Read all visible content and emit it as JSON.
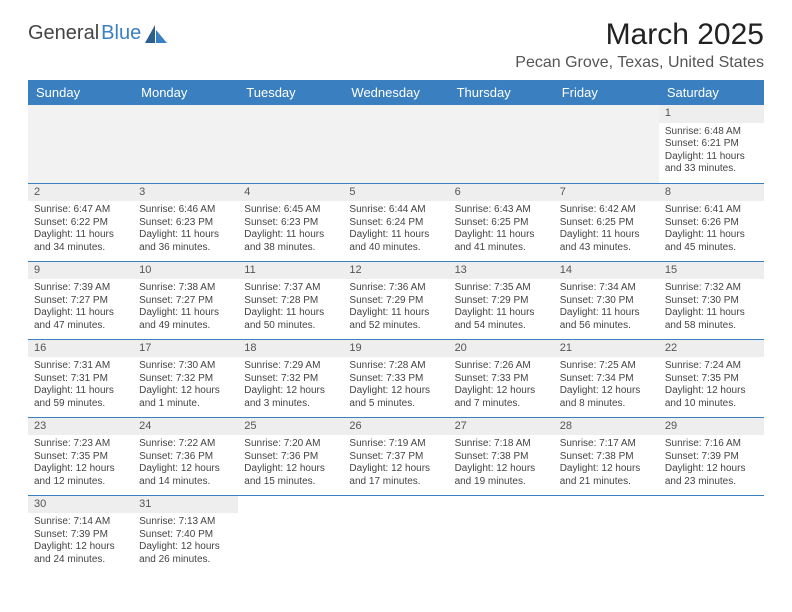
{
  "logo": {
    "text1": "General",
    "text2": "Blue"
  },
  "title": "March 2025",
  "location": "Pecan Grove, Texas, United States",
  "header_bg": "#3a7fbf",
  "dayHeaders": [
    "Sunday",
    "Monday",
    "Tuesday",
    "Wednesday",
    "Thursday",
    "Friday",
    "Saturday"
  ],
  "weeks": [
    [
      null,
      null,
      null,
      null,
      null,
      null,
      {
        "n": "1",
        "sr": "Sunrise: 6:48 AM",
        "ss": "Sunset: 6:21 PM",
        "d1": "Daylight: 11 hours",
        "d2": "and 33 minutes."
      }
    ],
    [
      {
        "n": "2",
        "sr": "Sunrise: 6:47 AM",
        "ss": "Sunset: 6:22 PM",
        "d1": "Daylight: 11 hours",
        "d2": "and 34 minutes."
      },
      {
        "n": "3",
        "sr": "Sunrise: 6:46 AM",
        "ss": "Sunset: 6:23 PM",
        "d1": "Daylight: 11 hours",
        "d2": "and 36 minutes."
      },
      {
        "n": "4",
        "sr": "Sunrise: 6:45 AM",
        "ss": "Sunset: 6:23 PM",
        "d1": "Daylight: 11 hours",
        "d2": "and 38 minutes."
      },
      {
        "n": "5",
        "sr": "Sunrise: 6:44 AM",
        "ss": "Sunset: 6:24 PM",
        "d1": "Daylight: 11 hours",
        "d2": "and 40 minutes."
      },
      {
        "n": "6",
        "sr": "Sunrise: 6:43 AM",
        "ss": "Sunset: 6:25 PM",
        "d1": "Daylight: 11 hours",
        "d2": "and 41 minutes."
      },
      {
        "n": "7",
        "sr": "Sunrise: 6:42 AM",
        "ss": "Sunset: 6:25 PM",
        "d1": "Daylight: 11 hours",
        "d2": "and 43 minutes."
      },
      {
        "n": "8",
        "sr": "Sunrise: 6:41 AM",
        "ss": "Sunset: 6:26 PM",
        "d1": "Daylight: 11 hours",
        "d2": "and 45 minutes."
      }
    ],
    [
      {
        "n": "9",
        "sr": "Sunrise: 7:39 AM",
        "ss": "Sunset: 7:27 PM",
        "d1": "Daylight: 11 hours",
        "d2": "and 47 minutes."
      },
      {
        "n": "10",
        "sr": "Sunrise: 7:38 AM",
        "ss": "Sunset: 7:27 PM",
        "d1": "Daylight: 11 hours",
        "d2": "and 49 minutes."
      },
      {
        "n": "11",
        "sr": "Sunrise: 7:37 AM",
        "ss": "Sunset: 7:28 PM",
        "d1": "Daylight: 11 hours",
        "d2": "and 50 minutes."
      },
      {
        "n": "12",
        "sr": "Sunrise: 7:36 AM",
        "ss": "Sunset: 7:29 PM",
        "d1": "Daylight: 11 hours",
        "d2": "and 52 minutes."
      },
      {
        "n": "13",
        "sr": "Sunrise: 7:35 AM",
        "ss": "Sunset: 7:29 PM",
        "d1": "Daylight: 11 hours",
        "d2": "and 54 minutes."
      },
      {
        "n": "14",
        "sr": "Sunrise: 7:34 AM",
        "ss": "Sunset: 7:30 PM",
        "d1": "Daylight: 11 hours",
        "d2": "and 56 minutes."
      },
      {
        "n": "15",
        "sr": "Sunrise: 7:32 AM",
        "ss": "Sunset: 7:30 PM",
        "d1": "Daylight: 11 hours",
        "d2": "and 58 minutes."
      }
    ],
    [
      {
        "n": "16",
        "sr": "Sunrise: 7:31 AM",
        "ss": "Sunset: 7:31 PM",
        "d1": "Daylight: 11 hours",
        "d2": "and 59 minutes."
      },
      {
        "n": "17",
        "sr": "Sunrise: 7:30 AM",
        "ss": "Sunset: 7:32 PM",
        "d1": "Daylight: 12 hours",
        "d2": "and 1 minute."
      },
      {
        "n": "18",
        "sr": "Sunrise: 7:29 AM",
        "ss": "Sunset: 7:32 PM",
        "d1": "Daylight: 12 hours",
        "d2": "and 3 minutes."
      },
      {
        "n": "19",
        "sr": "Sunrise: 7:28 AM",
        "ss": "Sunset: 7:33 PM",
        "d1": "Daylight: 12 hours",
        "d2": "and 5 minutes."
      },
      {
        "n": "20",
        "sr": "Sunrise: 7:26 AM",
        "ss": "Sunset: 7:33 PM",
        "d1": "Daylight: 12 hours",
        "d2": "and 7 minutes."
      },
      {
        "n": "21",
        "sr": "Sunrise: 7:25 AM",
        "ss": "Sunset: 7:34 PM",
        "d1": "Daylight: 12 hours",
        "d2": "and 8 minutes."
      },
      {
        "n": "22",
        "sr": "Sunrise: 7:24 AM",
        "ss": "Sunset: 7:35 PM",
        "d1": "Daylight: 12 hours",
        "d2": "and 10 minutes."
      }
    ],
    [
      {
        "n": "23",
        "sr": "Sunrise: 7:23 AM",
        "ss": "Sunset: 7:35 PM",
        "d1": "Daylight: 12 hours",
        "d2": "and 12 minutes."
      },
      {
        "n": "24",
        "sr": "Sunrise: 7:22 AM",
        "ss": "Sunset: 7:36 PM",
        "d1": "Daylight: 12 hours",
        "d2": "and 14 minutes."
      },
      {
        "n": "25",
        "sr": "Sunrise: 7:20 AM",
        "ss": "Sunset: 7:36 PM",
        "d1": "Daylight: 12 hours",
        "d2": "and 15 minutes."
      },
      {
        "n": "26",
        "sr": "Sunrise: 7:19 AM",
        "ss": "Sunset: 7:37 PM",
        "d1": "Daylight: 12 hours",
        "d2": "and 17 minutes."
      },
      {
        "n": "27",
        "sr": "Sunrise: 7:18 AM",
        "ss": "Sunset: 7:38 PM",
        "d1": "Daylight: 12 hours",
        "d2": "and 19 minutes."
      },
      {
        "n": "28",
        "sr": "Sunrise: 7:17 AM",
        "ss": "Sunset: 7:38 PM",
        "d1": "Daylight: 12 hours",
        "d2": "and 21 minutes."
      },
      {
        "n": "29",
        "sr": "Sunrise: 7:16 AM",
        "ss": "Sunset: 7:39 PM",
        "d1": "Daylight: 12 hours",
        "d2": "and 23 minutes."
      }
    ],
    [
      {
        "n": "30",
        "sr": "Sunrise: 7:14 AM",
        "ss": "Sunset: 7:39 PM",
        "d1": "Daylight: 12 hours",
        "d2": "and 24 minutes."
      },
      {
        "n": "31",
        "sr": "Sunrise: 7:13 AM",
        "ss": "Sunset: 7:40 PM",
        "d1": "Daylight: 12 hours",
        "d2": "and 26 minutes."
      },
      null,
      null,
      null,
      null,
      null
    ]
  ]
}
